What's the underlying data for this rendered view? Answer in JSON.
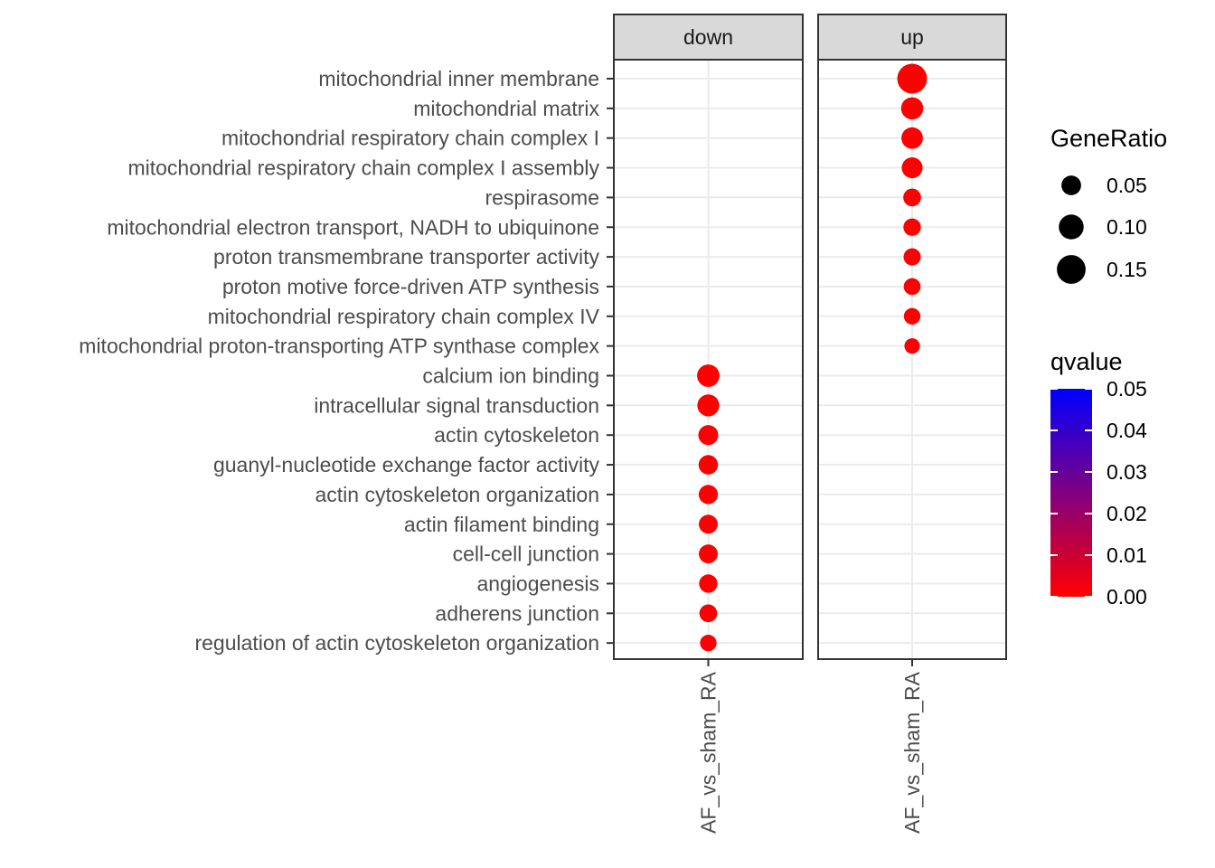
{
  "chart_data": {
    "type": "scatter",
    "facets": [
      "down",
      "up"
    ],
    "x_category": "AF_vs_sham_RA",
    "terms": [
      "mitochondrial inner membrane",
      "mitochondrial matrix",
      "mitochondrial respiratory chain complex I",
      "mitochondrial respiratory chain complex I assembly",
      "respirasome",
      "mitochondrial electron transport, NADH to ubiquinone",
      "proton transmembrane transporter activity",
      "proton motive force-driven ATP synthesis",
      "mitochondrial respiratory chain complex IV",
      "mitochondrial proton-transporting ATP synthase complex",
      "calcium ion binding",
      "intracellular signal transduction",
      "actin cytoskeleton",
      "guanyl-nucleotide exchange factor activity",
      "actin cytoskeleton organization",
      "actin filament binding",
      "cell-cell junction",
      "angiogenesis",
      "adherens junction",
      "regulation of actin cytoskeleton organization"
    ],
    "points": [
      {
        "facet": "up",
        "term": "mitochondrial inner membrane",
        "gene_ratio": 0.165,
        "qvalue": 0.0
      },
      {
        "facet": "up",
        "term": "mitochondrial matrix",
        "gene_ratio": 0.072,
        "qvalue": 0.0
      },
      {
        "facet": "up",
        "term": "mitochondrial respiratory chain complex I",
        "gene_ratio": 0.066,
        "qvalue": 0.0
      },
      {
        "facet": "up",
        "term": "mitochondrial respiratory chain complex I assembly",
        "gene_ratio": 0.06,
        "qvalue": 0.0
      },
      {
        "facet": "up",
        "term": "respirasome",
        "gene_ratio": 0.036,
        "qvalue": 0.0
      },
      {
        "facet": "up",
        "term": "mitochondrial electron transport, NADH to ubiquinone",
        "gene_ratio": 0.034,
        "qvalue": 0.0
      },
      {
        "facet": "up",
        "term": "proton transmembrane transporter activity",
        "gene_ratio": 0.032,
        "qvalue": 0.0
      },
      {
        "facet": "up",
        "term": "proton motive force-driven ATP synthesis",
        "gene_ratio": 0.03,
        "qvalue": 0.0
      },
      {
        "facet": "up",
        "term": "mitochondrial respiratory chain complex IV",
        "gene_ratio": 0.028,
        "qvalue": 0.0
      },
      {
        "facet": "up",
        "term": "mitochondrial proton-transporting ATP synthase complex",
        "gene_ratio": 0.022,
        "qvalue": 0.001
      },
      {
        "facet": "down",
        "term": "calcium ion binding",
        "gene_ratio": 0.075,
        "qvalue": 0.0
      },
      {
        "facet": "down",
        "term": "intracellular signal transduction",
        "gene_ratio": 0.07,
        "qvalue": 0.0
      },
      {
        "facet": "down",
        "term": "actin cytoskeleton",
        "gene_ratio": 0.052,
        "qvalue": 0.0
      },
      {
        "facet": "down",
        "term": "guanyl-nucleotide exchange factor activity",
        "gene_ratio": 0.048,
        "qvalue": 0.0
      },
      {
        "facet": "down",
        "term": "actin cytoskeleton organization",
        "gene_ratio": 0.046,
        "qvalue": 0.0
      },
      {
        "facet": "down",
        "term": "actin filament binding",
        "gene_ratio": 0.044,
        "qvalue": 0.0
      },
      {
        "facet": "down",
        "term": "cell-cell junction",
        "gene_ratio": 0.044,
        "qvalue": 0.0
      },
      {
        "facet": "down",
        "term": "angiogenesis",
        "gene_ratio": 0.04,
        "qvalue": 0.0
      },
      {
        "facet": "down",
        "term": "adherens junction",
        "gene_ratio": 0.036,
        "qvalue": 0.0
      },
      {
        "facet": "down",
        "term": "regulation of actin cytoskeleton organization",
        "gene_ratio": 0.028,
        "qvalue": 0.0
      }
    ],
    "size_legend": {
      "title": "GeneRatio",
      "breaks": [
        0.05,
        0.1,
        0.15
      ],
      "labels": [
        "0.05",
        "0.10",
        "0.15"
      ]
    },
    "color_legend": {
      "title": "qvalue",
      "range": [
        0.0,
        0.05
      ],
      "labels": [
        "0.05",
        "0.04",
        "0.03",
        "0.02",
        "0.01",
        "0.00"
      ],
      "low_color": "#ff0000",
      "high_color": "#0000ff"
    },
    "grid": true,
    "legend_position": "right"
  }
}
